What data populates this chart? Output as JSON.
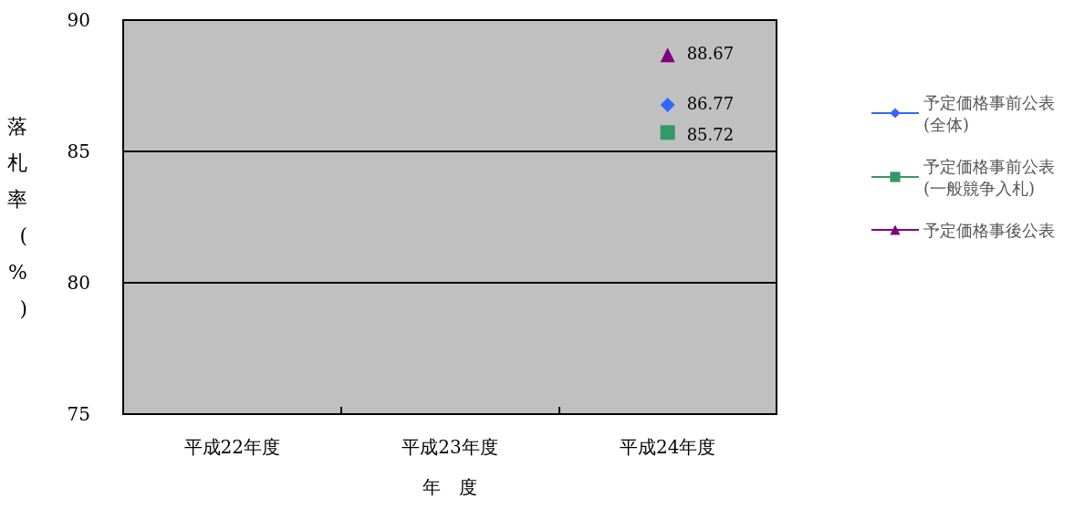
{
  "chart_data": {
    "type": "line",
    "xlabel": "年　度",
    "ylabel": "落札率(%)",
    "categories": [
      "平成22年度",
      "平成23年度",
      "平成24年度"
    ],
    "series": [
      {
        "name": "予定価格事前公表(全体)",
        "color": "#3366ff",
        "marker": "diamond",
        "values": [
          null,
          null,
          86.77
        ]
      },
      {
        "name": "予定価格事前公表(一般競争入札)",
        "color": "#339966",
        "marker": "square",
        "values": [
          null,
          null,
          85.72
        ]
      },
      {
        "name": "予定価格事後公表",
        "color": "#800080",
        "marker": "triangle",
        "values": [
          null,
          null,
          88.67
        ]
      }
    ],
    "ylim": [
      75,
      90
    ],
    "yticks": [
      75,
      80,
      85,
      90
    ],
    "grid": "y",
    "legend": "right",
    "data_labels": true
  }
}
